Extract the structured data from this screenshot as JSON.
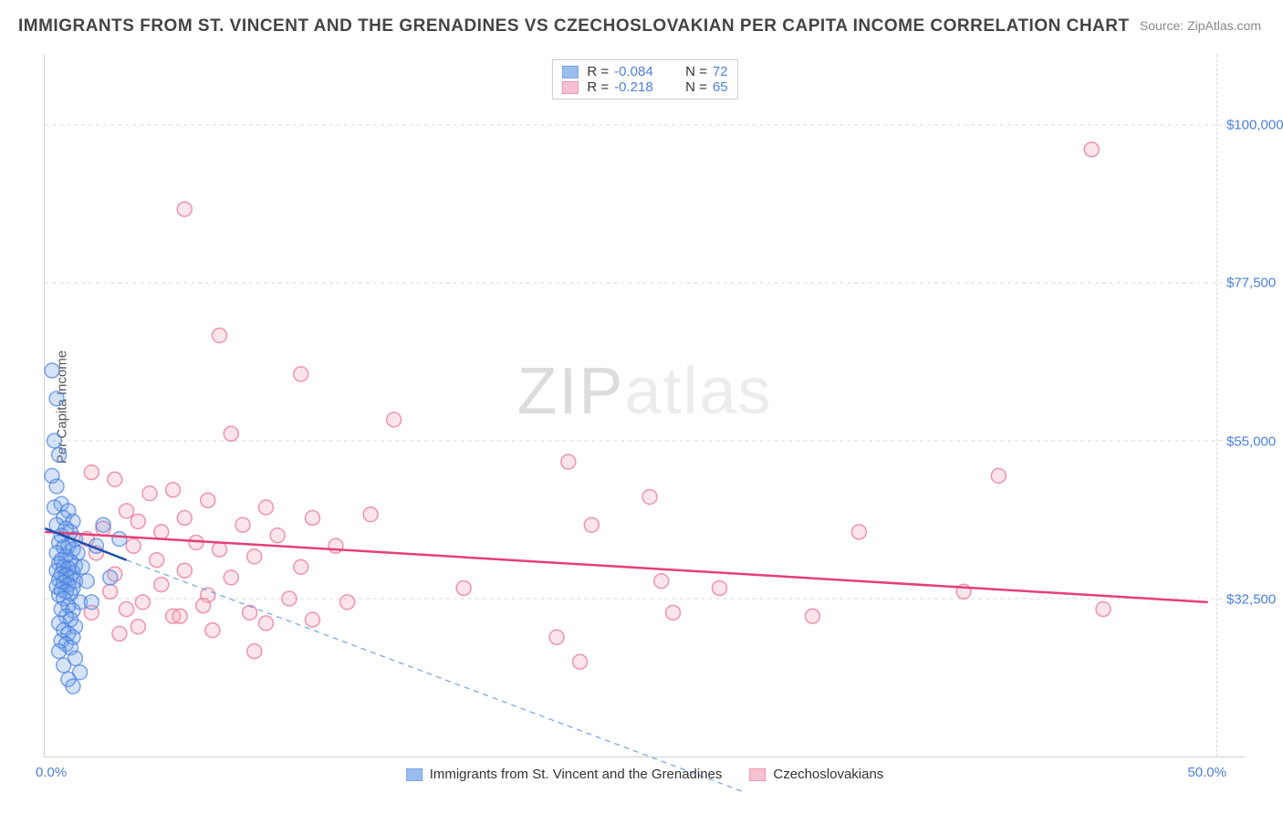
{
  "title": "IMMIGRANTS FROM ST. VINCENT AND THE GRENADINES VS CZECHOSLOVAKIAN PER CAPITA INCOME CORRELATION CHART",
  "source": "Source: ZipAtlas.com",
  "ylabel": "Per Capita Income",
  "watermark": {
    "zip": "ZIP",
    "atlas": "atlas"
  },
  "chart": {
    "type": "scatter",
    "xlim": [
      0,
      50
    ],
    "ylim": [
      10000,
      110000
    ],
    "y_ticks": [
      {
        "value": 100000,
        "label": "$100,000"
      },
      {
        "value": 77500,
        "label": "$77,500"
      },
      {
        "value": 55000,
        "label": "$55,000"
      },
      {
        "value": 32500,
        "label": "$32,500"
      }
    ],
    "x_tick_left": "0.0%",
    "x_tick_right": "50.0%",
    "grid_color": "#d8d8d8",
    "axis_color": "#d0d0d0",
    "background_color": "#ffffff",
    "marker_radius": 8,
    "marker_stroke_width": 1.5,
    "fill_opacity": 0.3,
    "series": [
      {
        "key": "blue",
        "name": "Immigrants from St. Vincent and the Grenadines",
        "color": "#6fa3e8",
        "stroke": "#4a7fe0",
        "R": "-0.084",
        "N": "72",
        "trend": {
          "x1": 0,
          "y1": 42500,
          "x2": 3.5,
          "y2": 38000,
          "color": "#1b4fb0",
          "width": 2.5
        },
        "trend_ext": {
          "x1": 3.5,
          "y1": 38000,
          "x2": 30,
          "y2": 5000,
          "color": "#6fa3e8",
          "dash": "6,5",
          "width": 1.2
        },
        "points": [
          [
            0.3,
            65000
          ],
          [
            0.5,
            61000
          ],
          [
            0.4,
            55000
          ],
          [
            0.6,
            53000
          ],
          [
            0.3,
            50000
          ],
          [
            0.5,
            48500
          ],
          [
            0.7,
            46000
          ],
          [
            0.4,
            45500
          ],
          [
            1.0,
            45000
          ],
          [
            0.8,
            44000
          ],
          [
            1.2,
            43500
          ],
          [
            0.5,
            43000
          ],
          [
            0.9,
            42500
          ],
          [
            1.1,
            42000
          ],
          [
            0.7,
            41500
          ],
          [
            1.3,
            41000
          ],
          [
            0.6,
            40500
          ],
          [
            1.0,
            40000
          ],
          [
            0.8,
            39800
          ],
          [
            1.2,
            39500
          ],
          [
            0.5,
            39000
          ],
          [
            1.4,
            39000
          ],
          [
            0.9,
            38500
          ],
          [
            0.7,
            38000
          ],
          [
            1.1,
            37800
          ],
          [
            0.6,
            37500
          ],
          [
            1.3,
            37200
          ],
          [
            0.8,
            37000
          ],
          [
            1.0,
            36800
          ],
          [
            0.5,
            36500
          ],
          [
            1.2,
            36200
          ],
          [
            0.7,
            36000
          ],
          [
            0.9,
            35800
          ],
          [
            1.1,
            35500
          ],
          [
            0.6,
            35200
          ],
          [
            1.3,
            35000
          ],
          [
            0.8,
            34800
          ],
          [
            1.0,
            34500
          ],
          [
            0.5,
            34200
          ],
          [
            1.2,
            34000
          ],
          [
            0.7,
            33800
          ],
          [
            0.9,
            33500
          ],
          [
            1.1,
            33200
          ],
          [
            0.6,
            33000
          ],
          [
            0.8,
            32500
          ],
          [
            1.5,
            32000
          ],
          [
            1.0,
            31500
          ],
          [
            0.7,
            31000
          ],
          [
            1.2,
            30800
          ],
          [
            2.0,
            32000
          ],
          [
            1.8,
            35000
          ],
          [
            1.6,
            37000
          ],
          [
            2.2,
            40000
          ],
          [
            2.5,
            43000
          ],
          [
            0.9,
            30000
          ],
          [
            1.1,
            29500
          ],
          [
            0.6,
            29000
          ],
          [
            1.3,
            28500
          ],
          [
            0.8,
            28000
          ],
          [
            1.0,
            27500
          ],
          [
            1.2,
            27000
          ],
          [
            0.7,
            26500
          ],
          [
            0.9,
            26000
          ],
          [
            1.1,
            25500
          ],
          [
            0.6,
            25000
          ],
          [
            1.3,
            24000
          ],
          [
            0.8,
            23000
          ],
          [
            1.5,
            22000
          ],
          [
            1.0,
            21000
          ],
          [
            3.2,
            41000
          ],
          [
            1.2,
            20000
          ],
          [
            2.8,
            35500
          ]
        ]
      },
      {
        "key": "pink",
        "name": "Czechoslovakians",
        "color": "#f4a8bb",
        "stroke": "#e86b8f",
        "R": "-0.218",
        "N": "65",
        "trend": {
          "x1": 0,
          "y1": 42000,
          "x2": 50,
          "y2": 32000,
          "color": "#e63e78",
          "width": 2.5
        },
        "points": [
          [
            6.0,
            88000
          ],
          [
            7.5,
            70000
          ],
          [
            11.0,
            64500
          ],
          [
            15.0,
            58000
          ],
          [
            8.0,
            56000
          ],
          [
            22.5,
            52000
          ],
          [
            41.0,
            50000
          ],
          [
            3.0,
            49500
          ],
          [
            45.0,
            96500
          ],
          [
            2.0,
            50500
          ],
          [
            5.5,
            48000
          ],
          [
            26.0,
            47000
          ],
          [
            4.5,
            47500
          ],
          [
            9.5,
            45500
          ],
          [
            7.0,
            46500
          ],
          [
            11.5,
            44000
          ],
          [
            3.5,
            45000
          ],
          [
            14.0,
            44500
          ],
          [
            6.0,
            44000
          ],
          [
            23.5,
            43000
          ],
          [
            35.0,
            42000
          ],
          [
            4.0,
            43500
          ],
          [
            8.5,
            43000
          ],
          [
            2.5,
            42500
          ],
          [
            5.0,
            42000
          ],
          [
            10.0,
            41500
          ],
          [
            1.8,
            41000
          ],
          [
            6.5,
            40500
          ],
          [
            12.5,
            40000
          ],
          [
            3.8,
            40000
          ],
          [
            7.5,
            39500
          ],
          [
            2.2,
            39000
          ],
          [
            9.0,
            38500
          ],
          [
            4.8,
            38000
          ],
          [
            26.5,
            35000
          ],
          [
            11.0,
            37000
          ],
          [
            6.0,
            36500
          ],
          [
            3.0,
            36000
          ],
          [
            8.0,
            35500
          ],
          [
            18.0,
            34000
          ],
          [
            5.0,
            34500
          ],
          [
            29.0,
            34000
          ],
          [
            39.5,
            33500
          ],
          [
            7.0,
            33000
          ],
          [
            2.8,
            33500
          ],
          [
            10.5,
            32500
          ],
          [
            4.2,
            32000
          ],
          [
            22.0,
            27000
          ],
          [
            6.8,
            31500
          ],
          [
            3.5,
            31000
          ],
          [
            8.8,
            30500
          ],
          [
            13.0,
            32000
          ],
          [
            5.5,
            30000
          ],
          [
            33.0,
            30000
          ],
          [
            27.0,
            30500
          ],
          [
            2.0,
            30500
          ],
          [
            9.5,
            29000
          ],
          [
            4.0,
            28500
          ],
          [
            7.2,
            28000
          ],
          [
            11.5,
            29500
          ],
          [
            3.2,
            27500
          ],
          [
            9.0,
            25000
          ],
          [
            5.8,
            30000
          ],
          [
            45.5,
            31000
          ],
          [
            23.0,
            23500
          ]
        ]
      }
    ]
  },
  "bottom_legend": {
    "series1_label": "Immigrants from St. Vincent and the Grenadines",
    "series2_label": "Czechoslovakians"
  }
}
